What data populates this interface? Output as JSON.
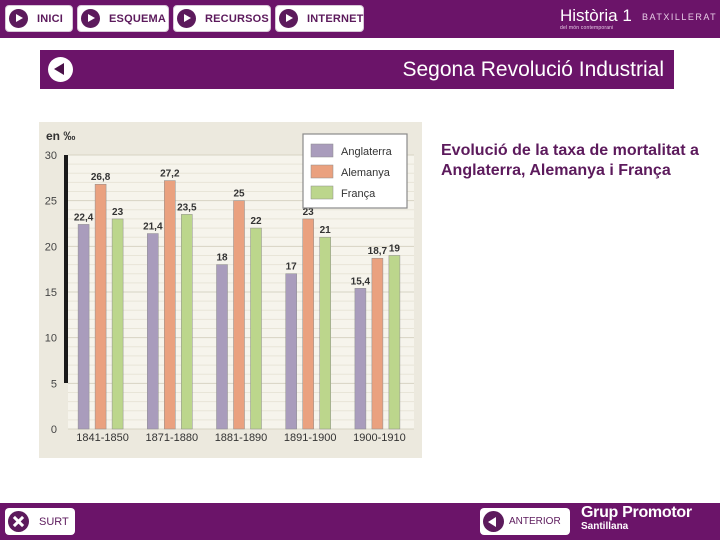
{
  "nav": [
    {
      "label": "INICI",
      "icon": "play-icon"
    },
    {
      "label": "ESQUEMA",
      "icon": "play-icon"
    },
    {
      "label": "RECURSOS",
      "icon": "play-icon"
    },
    {
      "label": "INTERNET",
      "icon": "play-icon"
    }
  ],
  "brand": {
    "title": "Història 1",
    "subtitle": "del món contemporani",
    "level": "BATXILLERAT"
  },
  "titlebar": {
    "title": "Segona Revolució Industrial",
    "back_icon": "back-arrow-icon"
  },
  "caption": "Evolució de la taxa de mortalitat a Anglaterra, Alemanya i França",
  "chart_data": {
    "type": "bar",
    "ylabel": "en ‰",
    "ylim": [
      0,
      30
    ],
    "yticks": [
      0,
      5,
      10,
      15,
      20,
      25,
      30
    ],
    "grid": true,
    "legend_position": "top-right",
    "categories": [
      "1841-1850",
      "1871-1880",
      "1881-1890",
      "1891-1900",
      "1900-1910"
    ],
    "series": [
      {
        "name": "Anglaterra",
        "color": "#a99cbc",
        "values": [
          22.4,
          21.4,
          18,
          17,
          15.4
        ],
        "labels": [
          "22,4",
          "21,4",
          "18",
          "17",
          "15,4"
        ]
      },
      {
        "name": "Alemanya",
        "color": "#eaa17f",
        "values": [
          26.8,
          27.2,
          25,
          23,
          18.7
        ],
        "labels": [
          "26,8",
          "27,2",
          "25",
          "23",
          "18,7"
        ]
      },
      {
        "name": "França",
        "color": "#bcd68c",
        "values": [
          23,
          23.5,
          22,
          21,
          19
        ],
        "labels": [
          "23",
          "23,5",
          "22",
          "21",
          "19"
        ]
      }
    ]
  },
  "footer": {
    "exit_label": "SURT",
    "prev_label": "ANTERIOR",
    "logo_line1": "Grup Promotor",
    "logo_line2": "Santillana"
  },
  "colors": {
    "brand_purple": "#6b1469",
    "text_purple": "#5c1a5c"
  }
}
